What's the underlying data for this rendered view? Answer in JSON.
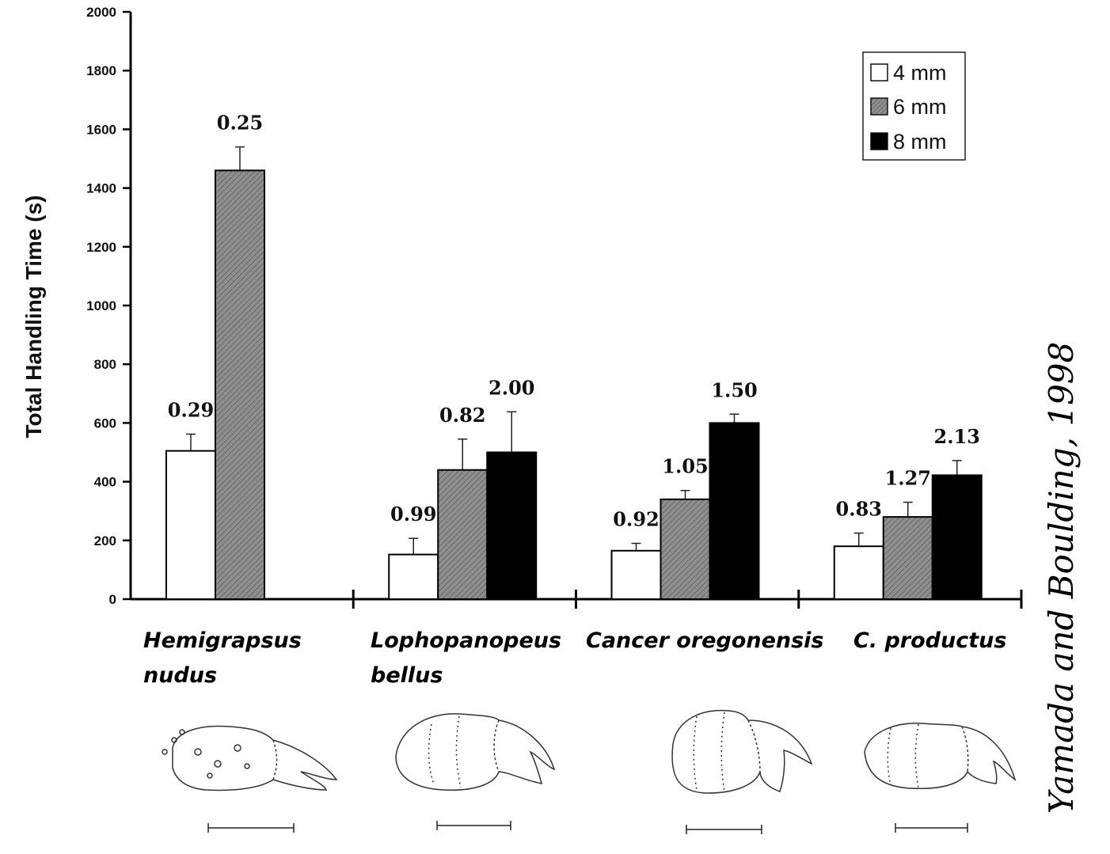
{
  "chart_data": {
    "type": "bar",
    "title": "",
    "xlabel": "",
    "ylabel": "Total Handling Time (s)",
    "ylim": [
      0,
      2000
    ],
    "yticks": [
      0,
      200,
      400,
      600,
      800,
      1000,
      1200,
      1400,
      1600,
      1800,
      2000
    ],
    "categories": [
      {
        "line1": "Hemigrapsus",
        "line2": "nudus"
      },
      {
        "line1": "Lophopanopeus",
        "line2": "bellus"
      },
      {
        "line1": "Cancer oregonensis",
        "line2": ""
      },
      {
        "line1": "C. productus",
        "line2": ""
      }
    ],
    "series": [
      {
        "name": "4 mm",
        "color": "#ffffff",
        "values": [
          505,
          152,
          165,
          180
        ],
        "errors": [
          57,
          55,
          25,
          45
        ],
        "labels": [
          "0.29",
          "0.99",
          "0.92",
          "0.83"
        ]
      },
      {
        "name": "6 mm",
        "color": "#8a8a8a",
        "values": [
          1460,
          440,
          340,
          280
        ],
        "errors": [
          80,
          105,
          30,
          50
        ],
        "labels": [
          "0.25",
          "0.82",
          "1.05",
          "1.27"
        ]
      },
      {
        "name": "8 mm",
        "color": "#000000",
        "values": [
          null,
          500,
          600,
          422
        ],
        "errors": [
          null,
          138,
          30,
          50
        ],
        "labels": [
          null,
          "2.00",
          "1.50",
          "2.13"
        ]
      }
    ],
    "legend_position": "top-right",
    "grid": false
  },
  "citation": "Yamada and Boulding, 1998"
}
